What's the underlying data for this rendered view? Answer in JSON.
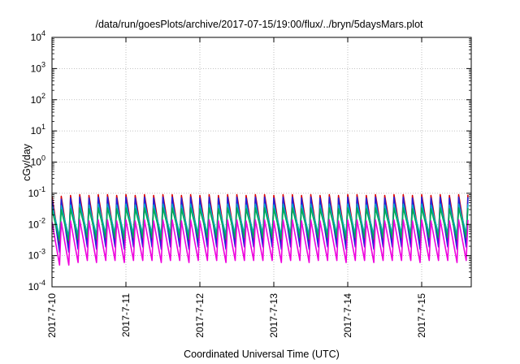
{
  "chart_data": {
    "type": "line",
    "title": "/data/run/goesPlots/archive/2017-07-15/19:00/flux/../bryn/5daysMars.plot",
    "xlabel": "Coordinated Universal Time (UTC)",
    "ylabel": "cGy/day",
    "yscale": "log",
    "ylim": [
      0.0001,
      10000
    ],
    "xlim": [
      "2017-07-10",
      "2017-07-15 19:00"
    ],
    "x_tick_labels": [
      "2017-7-10",
      "2017-7-11",
      "2017-7-12",
      "2017-7-13",
      "2017-7-14",
      "2017-7-15"
    ],
    "y_ticks": [
      {
        "base": "10",
        "exp": "-4"
      },
      {
        "base": "10",
        "exp": "-3"
      },
      {
        "base": "10",
        "exp": "-2"
      },
      {
        "base": "10",
        "exp": "-1"
      },
      {
        "base": "10",
        "exp": "0"
      },
      {
        "base": "10",
        "exp": "1"
      },
      {
        "base": "10",
        "exp": "2"
      },
      {
        "base": "10",
        "exp": "3"
      },
      {
        "base": "10",
        "exp": "4"
      }
    ],
    "grid": true,
    "sawtooth_period_hours": 3,
    "series": [
      {
        "color": "#dd0000",
        "peaks": [
          0.08,
          0.08,
          0.085,
          0.09,
          0.085,
          0.09,
          0.09,
          0.085,
          0.09,
          0.085,
          0.09,
          0.085,
          0.09,
          0.09,
          0.085,
          0.09,
          0.085,
          0.09,
          0.085,
          0.09,
          0.09,
          0.085,
          0.09,
          0.09,
          0.085,
          0.09,
          0.09,
          0.085,
          0.09,
          0.085,
          0.09,
          0.085,
          0.09,
          0.09,
          0.085,
          0.09,
          0.085,
          0.09,
          0.09,
          0.085,
          0.09,
          0.085,
          0.09,
          0.085,
          0.09,
          0.09,
          0.09,
          0.1,
          0.11,
          0.1,
          0.1,
          0.1,
          0.11,
          0.11,
          0.1,
          0.1,
          0.1,
          0.1,
          0.1,
          0.1,
          0.08,
          0.08,
          0.08,
          0.09,
          0.1,
          0.12,
          0.14,
          0.18,
          0.2,
          0.17,
          0.15,
          0.18,
          0.17,
          0.14,
          0.16,
          0.2,
          0.19,
          0.16,
          0.2,
          0.17,
          0.16,
          0.15,
          0.12,
          0.1,
          0.11,
          0.1,
          0.1,
          0.1,
          0.1,
          0.1,
          0.09,
          0.09
        ],
        "lows": [
          0.002,
          0.002,
          0.0025,
          0.003,
          0.0025,
          0.003,
          0.003,
          0.0025,
          0.003,
          0.003,
          0.003,
          0.0025,
          0.003,
          0.003,
          0.0025,
          0.003,
          0.003,
          0.003,
          0.0025,
          0.003,
          0.003,
          0.003,
          0.003,
          0.003,
          0.0025,
          0.003,
          0.003,
          0.0025,
          0.003,
          0.003,
          0.003,
          0.0025,
          0.003,
          0.003,
          0.0025,
          0.003,
          0.003,
          0.003,
          0.003,
          0.0025,
          0.003,
          0.003,
          0.003,
          0.0025,
          0.003,
          0.003,
          0.003,
          0.003,
          0.0035,
          0.0035,
          0.003,
          0.003,
          0.0035,
          0.0035,
          0.003,
          0.0035,
          0.0035,
          0.0035,
          0.003,
          0.003,
          0.003,
          0.004,
          0.004,
          0.004,
          0.005,
          0.005,
          0.006,
          0.006,
          0.007,
          0.006,
          0.006,
          0.006,
          0.007,
          0.006,
          0.006,
          0.007,
          0.007,
          0.006,
          0.007,
          0.006,
          0.006,
          0.0015,
          0.006,
          0.006,
          0.006,
          0.006,
          0.006,
          0.006,
          0.006,
          0.006,
          0.006,
          0.006
        ]
      },
      {
        "color": "#2222dd",
        "peaks": [
          0.065,
          0.065,
          0.07,
          0.075,
          0.07,
          0.075,
          0.075,
          0.07,
          0.075,
          0.07,
          0.075,
          0.07,
          0.075,
          0.075,
          0.07,
          0.075,
          0.07,
          0.075,
          0.07,
          0.075,
          0.075,
          0.07,
          0.075,
          0.075,
          0.07,
          0.075,
          0.075,
          0.07,
          0.075,
          0.07,
          0.075,
          0.07,
          0.075,
          0.075,
          0.07,
          0.075,
          0.07,
          0.075,
          0.075,
          0.07,
          0.075,
          0.07,
          0.075,
          0.07,
          0.075,
          0.075,
          0.075,
          0.085,
          0.095,
          0.085,
          0.085,
          0.085,
          0.095,
          0.095,
          0.085,
          0.085,
          0.085,
          0.085,
          0.085,
          0.085,
          0.065,
          0.065,
          0.065,
          0.075,
          0.085,
          0.1,
          0.12,
          0.14,
          0.15,
          0.13,
          0.12,
          0.14,
          0.13,
          0.11,
          0.13,
          0.15,
          0.14,
          0.13,
          0.15,
          0.13,
          0.13,
          0.12,
          0.095,
          0.085,
          0.09,
          0.085,
          0.085,
          0.085,
          0.085,
          0.085,
          0.075,
          0.075
        ],
        "lows": [
          0.0013,
          0.0013,
          0.0016,
          0.0019,
          0.0016,
          0.0019,
          0.0019,
          0.0016,
          0.0019,
          0.0019,
          0.0019,
          0.0016,
          0.0019,
          0.0019,
          0.0016,
          0.0019,
          0.0019,
          0.0019,
          0.0016,
          0.0019,
          0.0019,
          0.0019,
          0.0019,
          0.0019,
          0.0016,
          0.0019,
          0.0019,
          0.0016,
          0.0019,
          0.0019,
          0.0019,
          0.0016,
          0.0019,
          0.0019,
          0.0016,
          0.0019,
          0.0019,
          0.0019,
          0.0019,
          0.0016,
          0.0019,
          0.0019,
          0.0019,
          0.0016,
          0.0019,
          0.0019,
          0.0019,
          0.0019,
          0.0022,
          0.0022,
          0.0019,
          0.0019,
          0.0022,
          0.0022,
          0.0019,
          0.0022,
          0.0022,
          0.0022,
          0.0019,
          0.0019,
          0.0019,
          0.0026,
          0.0026,
          0.0026,
          0.0032,
          0.0032,
          0.0038,
          0.0038,
          0.0045,
          0.0038,
          0.0038,
          0.0038,
          0.0045,
          0.0038,
          0.0038,
          0.0045,
          0.0045,
          0.0038,
          0.0045,
          0.0038,
          0.0038,
          0.001,
          0.0038,
          0.0038,
          0.0038,
          0.0038,
          0.0038,
          0.0038,
          0.0038,
          0.0038,
          0.0038,
          0.0038
        ]
      },
      {
        "color": "#00aacc",
        "peaks": [
          0.04,
          0.04,
          0.042,
          0.045,
          0.042,
          0.045,
          0.045,
          0.042,
          0.045,
          0.042,
          0.045,
          0.042,
          0.045,
          0.045,
          0.042,
          0.045,
          0.042,
          0.045,
          0.042,
          0.045,
          0.045,
          0.042,
          0.045,
          0.045,
          0.042,
          0.045,
          0.045,
          0.042,
          0.045,
          0.042,
          0.045,
          0.042,
          0.045,
          0.045,
          0.042,
          0.045,
          0.042,
          0.045,
          0.045,
          0.042,
          0.045,
          0.042,
          0.045,
          0.042,
          0.045,
          0.045,
          0.045,
          0.05,
          0.055,
          0.05,
          0.05,
          0.05,
          0.055,
          0.055,
          0.05,
          0.05,
          0.05,
          0.05,
          0.05,
          0.05,
          0.04,
          0.04,
          0.04,
          0.045,
          0.05,
          0.055,
          0.06,
          0.065,
          0.07,
          0.065,
          0.06,
          0.065,
          0.065,
          0.06,
          0.065,
          0.07,
          0.07,
          0.065,
          0.07,
          0.065,
          0.065,
          0.06,
          0.055,
          0.05,
          0.052,
          0.05,
          0.05,
          0.05,
          0.05,
          0.05,
          0.045,
          0.045
        ],
        "lows": [
          0.004,
          0.004,
          0.0045,
          0.005,
          0.0045,
          0.005,
          0.005,
          0.0045,
          0.005,
          0.005,
          0.005,
          0.0045,
          0.005,
          0.005,
          0.0045,
          0.005,
          0.005,
          0.005,
          0.0045,
          0.005,
          0.005,
          0.005,
          0.005,
          0.005,
          0.0045,
          0.005,
          0.005,
          0.0045,
          0.005,
          0.005,
          0.005,
          0.0045,
          0.005,
          0.005,
          0.0045,
          0.005,
          0.005,
          0.005,
          0.005,
          0.0045,
          0.005,
          0.005,
          0.005,
          0.0045,
          0.005,
          0.005,
          0.005,
          0.005,
          0.0055,
          0.0055,
          0.005,
          0.005,
          0.0055,
          0.0055,
          0.005,
          0.0055,
          0.0055,
          0.0055,
          0.005,
          0.005,
          0.005,
          0.0065,
          0.0065,
          0.0065,
          0.0075,
          0.0075,
          0.0085,
          0.0085,
          0.0095,
          0.0085,
          0.0085,
          0.0085,
          0.0095,
          0.0085,
          0.0085,
          0.0095,
          0.0095,
          0.0085,
          0.0095,
          0.0085,
          0.0085,
          0.003,
          0.0085,
          0.0085,
          0.0085,
          0.0085,
          0.0085,
          0.0085,
          0.0085,
          0.0085,
          0.0085,
          0.0085
        ]
      },
      {
        "color": "#00aa55",
        "peaks": [
          0.03,
          0.03,
          0.032,
          0.034,
          0.032,
          0.034,
          0.034,
          0.032,
          0.034,
          0.032,
          0.034,
          0.032,
          0.034,
          0.034,
          0.032,
          0.034,
          0.032,
          0.034,
          0.032,
          0.034,
          0.034,
          0.032,
          0.034,
          0.034,
          0.032,
          0.034,
          0.034,
          0.032,
          0.034,
          0.032,
          0.034,
          0.032,
          0.034,
          0.034,
          0.032,
          0.034,
          0.032,
          0.034,
          0.034,
          0.032,
          0.034,
          0.032,
          0.034,
          0.032,
          0.034,
          0.034,
          0.034,
          0.038,
          0.042,
          0.038,
          0.038,
          0.038,
          0.042,
          0.042,
          0.038,
          0.038,
          0.038,
          0.038,
          0.038,
          0.038,
          0.03,
          0.03,
          0.03,
          0.034,
          0.038,
          0.042,
          0.046,
          0.05,
          0.052,
          0.05,
          0.046,
          0.05,
          0.05,
          0.046,
          0.05,
          0.052,
          0.052,
          0.05,
          0.052,
          0.05,
          0.05,
          0.046,
          0.042,
          0.038,
          0.04,
          0.038,
          0.038,
          0.038,
          0.038,
          0.038,
          0.034,
          0.034
        ],
        "lows": [
          0.003,
          0.003,
          0.0034,
          0.0038,
          0.0034,
          0.0038,
          0.0038,
          0.0034,
          0.0038,
          0.0038,
          0.0038,
          0.0034,
          0.0038,
          0.0038,
          0.0034,
          0.0038,
          0.0038,
          0.0038,
          0.0034,
          0.0038,
          0.0038,
          0.0038,
          0.0038,
          0.0038,
          0.0034,
          0.0038,
          0.0038,
          0.0034,
          0.0038,
          0.0038,
          0.0038,
          0.0034,
          0.0038,
          0.0038,
          0.0034,
          0.0038,
          0.0038,
          0.0038,
          0.0038,
          0.0034,
          0.0038,
          0.0038,
          0.0038,
          0.0034,
          0.0038,
          0.0038,
          0.0038,
          0.0038,
          0.0042,
          0.0042,
          0.0038,
          0.0038,
          0.0042,
          0.0042,
          0.0038,
          0.0042,
          0.0042,
          0.0042,
          0.0038,
          0.0038,
          0.0038,
          0.005,
          0.005,
          0.005,
          0.0058,
          0.0058,
          0.0066,
          0.0066,
          0.0074,
          0.0066,
          0.0066,
          0.0066,
          0.0074,
          0.0066,
          0.0066,
          0.0074,
          0.0074,
          0.0066,
          0.0074,
          0.0066,
          0.0066,
          0.0022,
          0.0066,
          0.0066,
          0.0066,
          0.0066,
          0.0066,
          0.0066,
          0.0066,
          0.0066,
          0.0066,
          0.0066
        ]
      },
      {
        "color": "#ee00dd",
        "peaks": [
          0.012,
          0.012,
          0.013,
          0.014,
          0.013,
          0.014,
          0.014,
          0.013,
          0.014,
          0.013,
          0.014,
          0.013,
          0.014,
          0.014,
          0.013,
          0.014,
          0.013,
          0.014,
          0.013,
          0.014,
          0.014,
          0.013,
          0.014,
          0.014,
          0.013,
          0.014,
          0.014,
          0.013,
          0.014,
          0.013,
          0.014,
          0.013,
          0.014,
          0.014,
          0.013,
          0.014,
          0.013,
          0.014,
          0.014,
          0.013,
          0.014,
          0.013,
          0.014,
          0.013,
          0.014,
          0.014,
          0.014,
          0.016,
          0.017,
          0.016,
          0.016,
          0.016,
          0.017,
          0.017,
          0.016,
          0.016,
          0.016,
          0.016,
          0.016,
          0.016,
          0.012,
          0.012,
          0.012,
          0.014,
          0.016,
          0.018,
          0.02,
          0.022,
          0.023,
          0.022,
          0.02,
          0.022,
          0.022,
          0.02,
          0.022,
          0.023,
          0.023,
          0.022,
          0.023,
          0.022,
          0.022,
          0.02,
          0.018,
          0.016,
          0.017,
          0.016,
          0.016,
          0.016,
          0.016,
          0.016,
          0.014,
          0.014
        ],
        "lows": [
          0.0005,
          0.0005,
          0.0006,
          0.0007,
          0.0006,
          0.0007,
          0.0007,
          0.0006,
          0.0007,
          0.0007,
          0.0007,
          0.0006,
          0.0007,
          0.0007,
          0.0006,
          0.0007,
          0.0007,
          0.0007,
          0.0006,
          0.0007,
          0.0007,
          0.0007,
          0.0007,
          0.0007,
          0.0006,
          0.0007,
          0.0007,
          0.0006,
          0.0007,
          0.0007,
          0.0007,
          0.0006,
          0.0007,
          0.0007,
          0.0006,
          0.0007,
          0.0007,
          0.0007,
          0.0007,
          0.0006,
          0.0007,
          0.0007,
          0.0007,
          0.0006,
          0.0007,
          0.0007,
          0.0007,
          0.0007,
          0.0008,
          0.0008,
          0.0007,
          0.0007,
          0.0008,
          0.0008,
          0.0007,
          0.0008,
          0.0008,
          0.0008,
          0.0007,
          0.0007,
          0.0007,
          0.0009,
          0.0009,
          0.0009,
          0.0011,
          0.0011,
          0.0013,
          0.0013,
          0.0015,
          0.0013,
          0.0013,
          0.0013,
          0.0015,
          0.0013,
          0.0013,
          0.0015,
          0.0015,
          0.0013,
          0.0015,
          0.0013,
          0.0013,
          0.0009,
          0.0013,
          0.0013,
          0.0013,
          0.0013,
          0.0013,
          0.0013,
          0.0013,
          0.0013,
          0.0013,
          0.0013
        ]
      }
    ]
  }
}
